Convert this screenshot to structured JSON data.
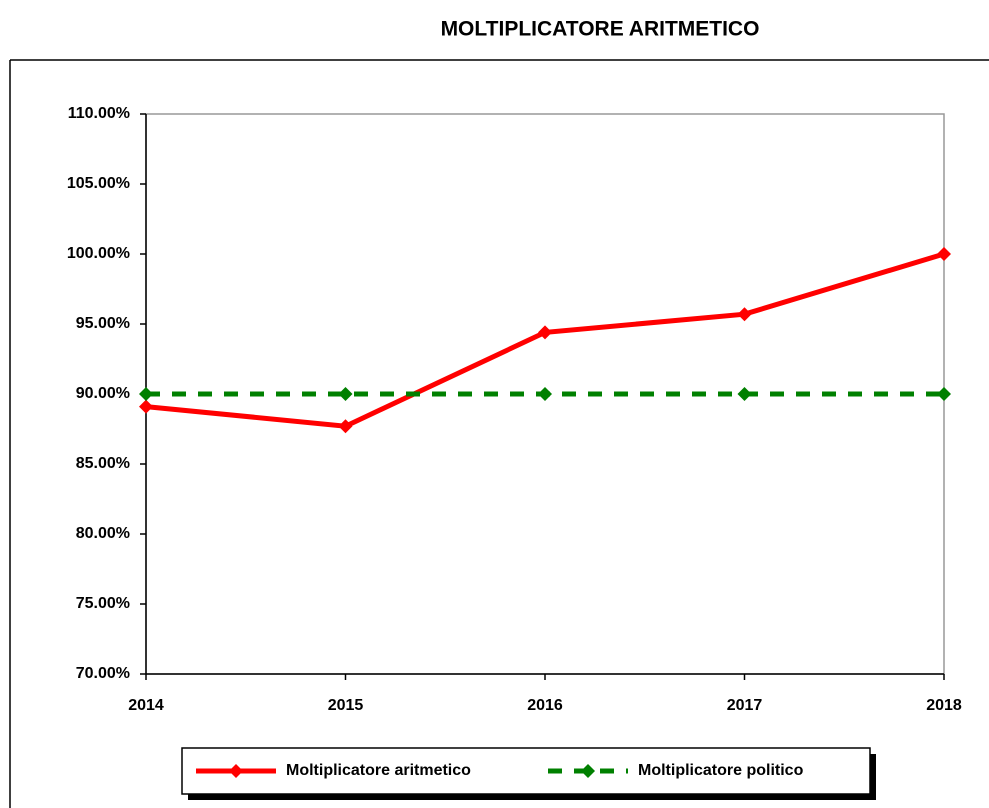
{
  "chart_data": {
    "type": "line",
    "title": "MOLTIPLICATORE ARITMETICO",
    "categories": [
      "2014",
      "2015",
      "2016",
      "2017",
      "2018"
    ],
    "series": [
      {
        "name": "Moltiplicatore aritmetico",
        "color": "#ff0000",
        "dashed": false,
        "values": [
          89.1,
          87.7,
          94.4,
          95.7,
          100
        ]
      },
      {
        "name": "Moltiplicatore politico",
        "color": "#008000",
        "dashed": true,
        "values": [
          90,
          90,
          90,
          90,
          90
        ]
      }
    ],
    "ylim": [
      70,
      110
    ],
    "yticks": [
      {
        "value": 70,
        "label": "70.00%"
      },
      {
        "value": 75,
        "label": "75.00%"
      },
      {
        "value": 80,
        "label": "80.00%"
      },
      {
        "value": 85,
        "label": "85.00%"
      },
      {
        "value": 90,
        "label": "90.00%"
      },
      {
        "value": 95,
        "label": "95.00%"
      },
      {
        "value": 100,
        "label": "100.00%"
      },
      {
        "value": 105,
        "label": "105.00%"
      },
      {
        "value": 110,
        "label": "110.00%"
      }
    ],
    "grid": false,
    "legend": "bottom"
  }
}
